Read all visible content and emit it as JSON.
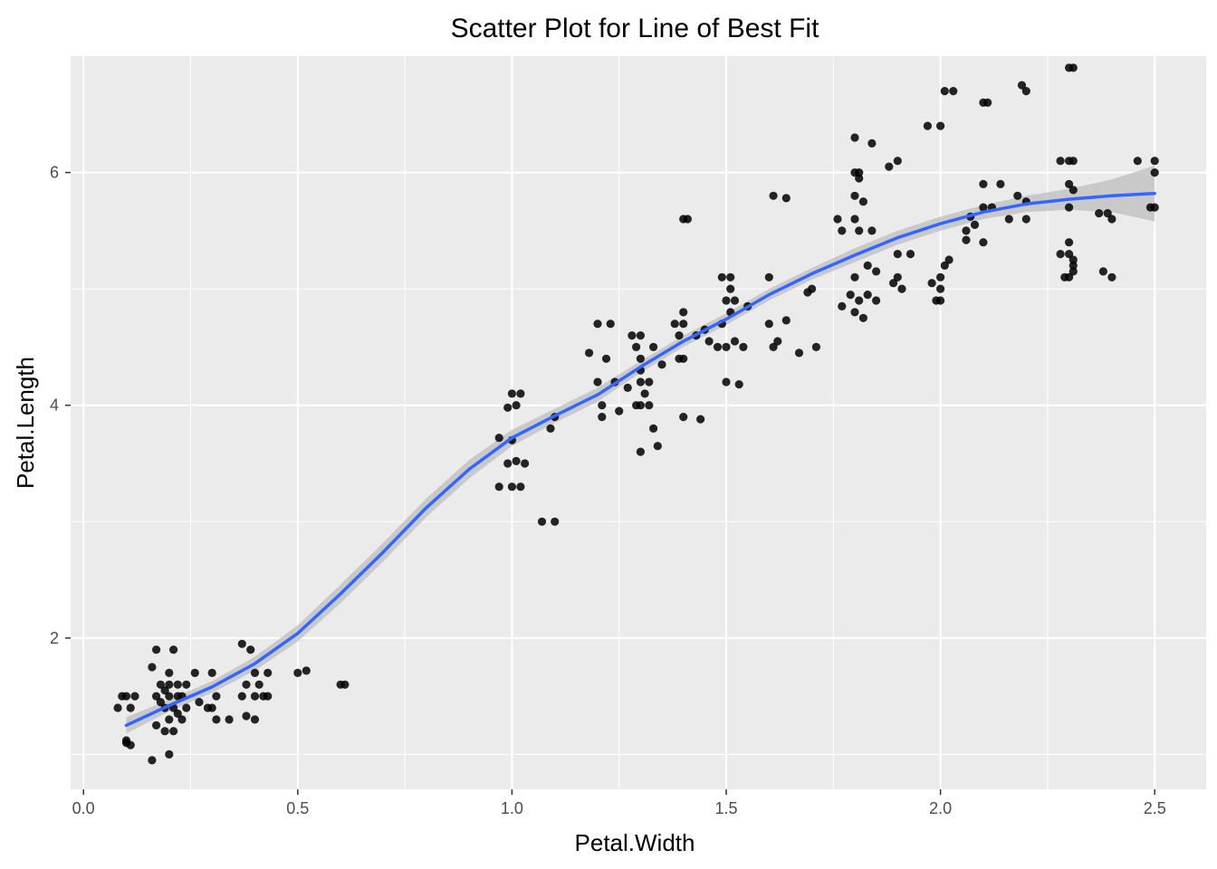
{
  "chart_data": {
    "type": "scatter",
    "title": "Scatter Plot for Line of Best Fit",
    "xlabel": "Petal.Width",
    "ylabel": "Petal.Length",
    "xlim": [
      -0.03,
      2.62
    ],
    "ylim": [
      0.7,
      7.0
    ],
    "x_ticks": [
      0.0,
      0.5,
      1.0,
      1.5,
      2.0,
      2.5
    ],
    "x_tick_labels": [
      "0.0",
      "0.5",
      "1.0",
      "1.5",
      "2.0",
      "2.5"
    ],
    "y_ticks": [
      2,
      4,
      6
    ],
    "y_tick_labels": [
      "2",
      "4",
      "6"
    ],
    "grid": true,
    "legend": "none",
    "colors": {
      "panel": "#ebebeb",
      "grid": "#ffffff",
      "points": "#000000",
      "smooth_line": "#3366ff",
      "confidence_band": "#bdbdbd"
    },
    "points": [
      {
        "x": 0.08,
        "y": 1.4
      },
      {
        "x": 0.09,
        "y": 1.5
      },
      {
        "x": 0.1,
        "y": 1.5
      },
      {
        "x": 0.11,
        "y": 1.4
      },
      {
        "x": 0.12,
        "y": 1.5
      },
      {
        "x": 0.1,
        "y": 1.1
      },
      {
        "x": 0.1,
        "y": 1.12
      },
      {
        "x": 0.11,
        "y": 1.08
      },
      {
        "x": 0.16,
        "y": 1.75
      },
      {
        "x": 0.17,
        "y": 1.5
      },
      {
        "x": 0.17,
        "y": 1.9
      },
      {
        "x": 0.18,
        "y": 1.6
      },
      {
        "x": 0.18,
        "y": 1.45
      },
      {
        "x": 0.19,
        "y": 1.4
      },
      {
        "x": 0.19,
        "y": 1.55
      },
      {
        "x": 0.2,
        "y": 1.3
      },
      {
        "x": 0.2,
        "y": 1.6
      },
      {
        "x": 0.2,
        "y": 1.5
      },
      {
        "x": 0.21,
        "y": 1.9
      },
      {
        "x": 0.21,
        "y": 1.4
      },
      {
        "x": 0.21,
        "y": 1.2
      },
      {
        "x": 0.22,
        "y": 1.6
      },
      {
        "x": 0.22,
        "y": 1.5
      },
      {
        "x": 0.23,
        "y": 1.3
      },
      {
        "x": 0.24,
        "y": 1.4
      },
      {
        "x": 0.24,
        "y": 1.6
      },
      {
        "x": 0.2,
        "y": 1.7
      },
      {
        "x": 0.19,
        "y": 1.2
      },
      {
        "x": 0.16,
        "y": 0.95
      },
      {
        "x": 0.2,
        "y": 1.0
      },
      {
        "x": 0.17,
        "y": 1.25
      },
      {
        "x": 0.22,
        "y": 1.35
      },
      {
        "x": 0.23,
        "y": 1.5
      },
      {
        "x": 0.26,
        "y": 1.7
      },
      {
        "x": 0.27,
        "y": 1.45
      },
      {
        "x": 0.29,
        "y": 1.4
      },
      {
        "x": 0.3,
        "y": 1.7
      },
      {
        "x": 0.31,
        "y": 1.5
      },
      {
        "x": 0.31,
        "y": 1.3
      },
      {
        "x": 0.34,
        "y": 1.3
      },
      {
        "x": 0.3,
        "y": 1.4
      },
      {
        "x": 0.37,
        "y": 1.95
      },
      {
        "x": 0.37,
        "y": 1.5
      },
      {
        "x": 0.38,
        "y": 1.6
      },
      {
        "x": 0.38,
        "y": 1.33
      },
      {
        "x": 0.39,
        "y": 1.9
      },
      {
        "x": 0.4,
        "y": 1.7
      },
      {
        "x": 0.4,
        "y": 1.5
      },
      {
        "x": 0.4,
        "y": 1.3
      },
      {
        "x": 0.41,
        "y": 1.6
      },
      {
        "x": 0.42,
        "y": 1.5
      },
      {
        "x": 0.43,
        "y": 1.7
      },
      {
        "x": 0.43,
        "y": 1.5
      },
      {
        "x": 0.5,
        "y": 1.7
      },
      {
        "x": 0.52,
        "y": 1.72
      },
      {
        "x": 0.6,
        "y": 1.6
      },
      {
        "x": 0.61,
        "y": 1.6
      },
      {
        "x": 0.97,
        "y": 3.72
      },
      {
        "x": 0.97,
        "y": 3.3
      },
      {
        "x": 0.99,
        "y": 3.98
      },
      {
        "x": 0.99,
        "y": 3.5
      },
      {
        "x": 1.0,
        "y": 4.1
      },
      {
        "x": 1.0,
        "y": 3.7
      },
      {
        "x": 1.0,
        "y": 3.3
      },
      {
        "x": 1.01,
        "y": 4.0
      },
      {
        "x": 1.01,
        "y": 3.52
      },
      {
        "x": 1.02,
        "y": 4.1
      },
      {
        "x": 1.02,
        "y": 3.3
      },
      {
        "x": 1.03,
        "y": 3.5
      },
      {
        "x": 1.07,
        "y": 3.0
      },
      {
        "x": 1.1,
        "y": 3.0
      },
      {
        "x": 1.1,
        "y": 3.9
      },
      {
        "x": 1.09,
        "y": 3.8
      },
      {
        "x": 1.18,
        "y": 4.45
      },
      {
        "x": 1.2,
        "y": 4.7
      },
      {
        "x": 1.2,
        "y": 4.2
      },
      {
        "x": 1.21,
        "y": 4.0
      },
      {
        "x": 1.21,
        "y": 3.9
      },
      {
        "x": 1.22,
        "y": 4.4
      },
      {
        "x": 1.23,
        "y": 4.7
      },
      {
        "x": 1.24,
        "y": 4.2
      },
      {
        "x": 1.25,
        "y": 3.95
      },
      {
        "x": 1.27,
        "y": 4.15
      },
      {
        "x": 1.28,
        "y": 4.6
      },
      {
        "x": 1.29,
        "y": 4.5
      },
      {
        "x": 1.29,
        "y": 4.0
      },
      {
        "x": 1.3,
        "y": 4.6
      },
      {
        "x": 1.3,
        "y": 4.4
      },
      {
        "x": 1.3,
        "y": 4.3
      },
      {
        "x": 1.3,
        "y": 4.2
      },
      {
        "x": 1.3,
        "y": 4.0
      },
      {
        "x": 1.3,
        "y": 3.6
      },
      {
        "x": 1.31,
        "y": 4.1
      },
      {
        "x": 1.32,
        "y": 4.0
      },
      {
        "x": 1.33,
        "y": 4.5
      },
      {
        "x": 1.33,
        "y": 3.8
      },
      {
        "x": 1.34,
        "y": 3.65
      },
      {
        "x": 1.35,
        "y": 4.35
      },
      {
        "x": 1.32,
        "y": 4.2
      },
      {
        "x": 1.38,
        "y": 4.7
      },
      {
        "x": 1.39,
        "y": 4.4
      },
      {
        "x": 1.39,
        "y": 4.6
      },
      {
        "x": 1.4,
        "y": 4.8
      },
      {
        "x": 1.4,
        "y": 4.7
      },
      {
        "x": 1.4,
        "y": 4.4
      },
      {
        "x": 1.4,
        "y": 3.9
      },
      {
        "x": 1.4,
        "y": 5.6
      },
      {
        "x": 1.41,
        "y": 5.6
      },
      {
        "x": 1.43,
        "y": 4.6
      },
      {
        "x": 1.44,
        "y": 3.88
      },
      {
        "x": 1.45,
        "y": 4.65
      },
      {
        "x": 1.46,
        "y": 4.55
      },
      {
        "x": 1.48,
        "y": 4.5
      },
      {
        "x": 1.49,
        "y": 4.7
      },
      {
        "x": 1.49,
        "y": 5.1
      },
      {
        "x": 1.5,
        "y": 4.9
      },
      {
        "x": 1.5,
        "y": 4.5
      },
      {
        "x": 1.5,
        "y": 4.2
      },
      {
        "x": 1.51,
        "y": 5.1
      },
      {
        "x": 1.51,
        "y": 5.0
      },
      {
        "x": 1.51,
        "y": 4.8
      },
      {
        "x": 1.52,
        "y": 4.55
      },
      {
        "x": 1.52,
        "y": 4.9
      },
      {
        "x": 1.53,
        "y": 4.18
      },
      {
        "x": 1.54,
        "y": 4.5
      },
      {
        "x": 1.55,
        "y": 4.85
      },
      {
        "x": 1.6,
        "y": 5.1
      },
      {
        "x": 1.6,
        "y": 4.7
      },
      {
        "x": 1.61,
        "y": 5.8
      },
      {
        "x": 1.61,
        "y": 4.5
      },
      {
        "x": 1.62,
        "y": 4.55
      },
      {
        "x": 1.64,
        "y": 5.78
      },
      {
        "x": 1.64,
        "y": 4.73
      },
      {
        "x": 1.67,
        "y": 4.45
      },
      {
        "x": 1.69,
        "y": 4.97
      },
      {
        "x": 1.7,
        "y": 5.0
      },
      {
        "x": 1.71,
        "y": 4.5
      },
      {
        "x": 1.76,
        "y": 5.6
      },
      {
        "x": 1.77,
        "y": 5.5
      },
      {
        "x": 1.77,
        "y": 4.85
      },
      {
        "x": 1.79,
        "y": 4.95
      },
      {
        "x": 1.8,
        "y": 6.3
      },
      {
        "x": 1.8,
        "y": 6.0
      },
      {
        "x": 1.8,
        "y": 5.8
      },
      {
        "x": 1.8,
        "y": 5.6
      },
      {
        "x": 1.8,
        "y": 5.1
      },
      {
        "x": 1.8,
        "y": 4.8
      },
      {
        "x": 1.81,
        "y": 5.5
      },
      {
        "x": 1.81,
        "y": 4.9
      },
      {
        "x": 1.81,
        "y": 6.0
      },
      {
        "x": 1.81,
        "y": 5.95
      },
      {
        "x": 1.82,
        "y": 5.75
      },
      {
        "x": 1.82,
        "y": 4.75
      },
      {
        "x": 1.83,
        "y": 5.2
      },
      {
        "x": 1.83,
        "y": 4.95
      },
      {
        "x": 1.84,
        "y": 5.5
      },
      {
        "x": 1.84,
        "y": 6.25
      },
      {
        "x": 1.85,
        "y": 5.15
      },
      {
        "x": 1.85,
        "y": 4.9
      },
      {
        "x": 1.88,
        "y": 6.05
      },
      {
        "x": 1.89,
        "y": 5.05
      },
      {
        "x": 1.9,
        "y": 6.1
      },
      {
        "x": 1.9,
        "y": 5.3
      },
      {
        "x": 1.9,
        "y": 5.1
      },
      {
        "x": 1.91,
        "y": 5.0
      },
      {
        "x": 1.93,
        "y": 5.3
      },
      {
        "x": 1.97,
        "y": 6.4
      },
      {
        "x": 1.98,
        "y": 5.05
      },
      {
        "x": 1.99,
        "y": 4.9
      },
      {
        "x": 2.0,
        "y": 6.4
      },
      {
        "x": 2.0,
        "y": 5.1
      },
      {
        "x": 2.0,
        "y": 5.0
      },
      {
        "x": 2.0,
        "y": 4.9
      },
      {
        "x": 2.01,
        "y": 5.2
      },
      {
        "x": 2.01,
        "y": 6.7
      },
      {
        "x": 2.02,
        "y": 5.25
      },
      {
        "x": 2.03,
        "y": 6.7
      },
      {
        "x": 2.06,
        "y": 5.5
      },
      {
        "x": 2.06,
        "y": 5.42
      },
      {
        "x": 2.07,
        "y": 5.62
      },
      {
        "x": 2.08,
        "y": 5.55
      },
      {
        "x": 2.1,
        "y": 6.6
      },
      {
        "x": 2.1,
        "y": 5.9
      },
      {
        "x": 2.1,
        "y": 5.7
      },
      {
        "x": 2.1,
        "y": 5.4
      },
      {
        "x": 2.11,
        "y": 6.6
      },
      {
        "x": 2.12,
        "y": 5.7
      },
      {
        "x": 2.14,
        "y": 5.9
      },
      {
        "x": 2.16,
        "y": 5.6
      },
      {
        "x": 2.18,
        "y": 5.8
      },
      {
        "x": 2.19,
        "y": 6.75
      },
      {
        "x": 2.2,
        "y": 6.7
      },
      {
        "x": 2.2,
        "y": 5.75
      },
      {
        "x": 2.2,
        "y": 5.6
      },
      {
        "x": 2.28,
        "y": 6.1
      },
      {
        "x": 2.28,
        "y": 5.3
      },
      {
        "x": 2.29,
        "y": 5.1
      },
      {
        "x": 2.3,
        "y": 6.9
      },
      {
        "x": 2.3,
        "y": 6.1
      },
      {
        "x": 2.3,
        "y": 5.9
      },
      {
        "x": 2.3,
        "y": 5.7
      },
      {
        "x": 2.3,
        "y": 5.4
      },
      {
        "x": 2.3,
        "y": 5.3
      },
      {
        "x": 2.3,
        "y": 5.1
      },
      {
        "x": 2.31,
        "y": 6.9
      },
      {
        "x": 2.31,
        "y": 6.1
      },
      {
        "x": 2.31,
        "y": 5.85
      },
      {
        "x": 2.31,
        "y": 5.25
      },
      {
        "x": 2.31,
        "y": 5.2
      },
      {
        "x": 2.31,
        "y": 5.15
      },
      {
        "x": 2.37,
        "y": 5.65
      },
      {
        "x": 2.38,
        "y": 5.15
      },
      {
        "x": 2.39,
        "y": 5.65
      },
      {
        "x": 2.4,
        "y": 5.6
      },
      {
        "x": 2.4,
        "y": 5.1
      },
      {
        "x": 2.46,
        "y": 6.1
      },
      {
        "x": 2.5,
        "y": 6.1
      },
      {
        "x": 2.5,
        "y": 6.0
      },
      {
        "x": 2.5,
        "y": 5.7
      },
      {
        "x": 2.49,
        "y": 5.7
      }
    ],
    "smooth": {
      "method": "loess",
      "x": [
        0.1,
        0.2,
        0.3,
        0.4,
        0.5,
        0.6,
        0.7,
        0.8,
        0.9,
        1.0,
        1.1,
        1.2,
        1.3,
        1.4,
        1.5,
        1.6,
        1.7,
        1.8,
        1.9,
        2.0,
        2.1,
        2.2,
        2.3,
        2.4,
        2.5
      ],
      "y": [
        1.25,
        1.42,
        1.58,
        1.78,
        2.04,
        2.38,
        2.74,
        3.12,
        3.45,
        3.72,
        3.91,
        4.09,
        4.33,
        4.55,
        4.74,
        4.95,
        5.13,
        5.29,
        5.44,
        5.56,
        5.66,
        5.73,
        5.77,
        5.8,
        5.82
      ],
      "lower": [
        1.18,
        1.37,
        1.53,
        1.72,
        1.97,
        2.3,
        2.66,
        3.04,
        3.37,
        3.65,
        3.85,
        4.03,
        4.28,
        4.5,
        4.69,
        4.9,
        5.08,
        5.23,
        5.38,
        5.5,
        5.6,
        5.66,
        5.68,
        5.66,
        5.58
      ],
      "upper": [
        1.32,
        1.47,
        1.63,
        1.84,
        2.11,
        2.46,
        2.82,
        3.2,
        3.53,
        3.79,
        3.97,
        4.15,
        4.38,
        4.6,
        4.79,
        5.0,
        5.18,
        5.35,
        5.5,
        5.62,
        5.72,
        5.8,
        5.86,
        5.94,
        6.06
      ]
    }
  }
}
